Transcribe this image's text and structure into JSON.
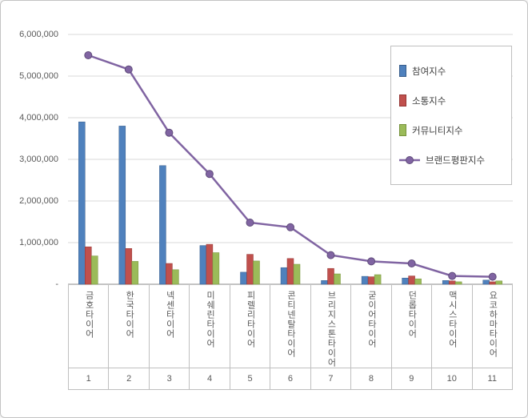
{
  "chart_data": {
    "type": "bar",
    "title": "",
    "categories": [
      "금호타이어",
      "한국타이어",
      "넥센타이어",
      "미쉐린타이어",
      "피렐리타이어",
      "콘티넨탈타이어",
      "브리지스톤타이어",
      "굳이어타이어",
      "던롭타이어",
      "맥시스타이어",
      "요코하마타이어"
    ],
    "category_numbers": [
      "1",
      "2",
      "3",
      "4",
      "5",
      "6",
      "7",
      "8",
      "9",
      "10",
      "11"
    ],
    "series": [
      {
        "name": "참여지수",
        "type": "bar",
        "color": "#4f81bd",
        "border_color": "#385d8a",
        "values": [
          3900000,
          3800000,
          2850000,
          930000,
          290000,
          400000,
          90000,
          190000,
          150000,
          90000,
          100000
        ]
      },
      {
        "name": "소통지수",
        "type": "bar",
        "color": "#c0504d",
        "border_color": "#943634",
        "values": [
          900000,
          860000,
          500000,
          960000,
          720000,
          620000,
          380000,
          180000,
          200000,
          80000,
          60000
        ]
      },
      {
        "name": "커뮤니티지수",
        "type": "bar",
        "color": "#9bbb59",
        "border_color": "#76923c",
        "values": [
          680000,
          550000,
          350000,
          760000,
          560000,
          480000,
          250000,
          230000,
          130000,
          60000,
          80000
        ]
      },
      {
        "name": "브랜드평판지수",
        "type": "line",
        "color": "#8064a2",
        "border_color": "#5f4b7a",
        "values": [
          5500000,
          5160000,
          3640000,
          2650000,
          1480000,
          1370000,
          700000,
          550000,
          500000,
          200000,
          180000
        ]
      }
    ],
    "y_axis": {
      "min": 0,
      "max": 6000000,
      "step": 1000000,
      "tick_labels": [
        "-",
        "1,000,000",
        "2,000,000",
        "3,000,000",
        "4,000,000",
        "5,000,000",
        "6,000,000"
      ]
    },
    "legend_position": "top-right",
    "grid": true,
    "colors": {
      "gridline": "#d9d9d9",
      "axis_line": "#898989",
      "table_border": "#bfbfbf",
      "tick_text": "#595959",
      "legend_text": "#404040",
      "frame_border": "#c3c3c3"
    }
  }
}
